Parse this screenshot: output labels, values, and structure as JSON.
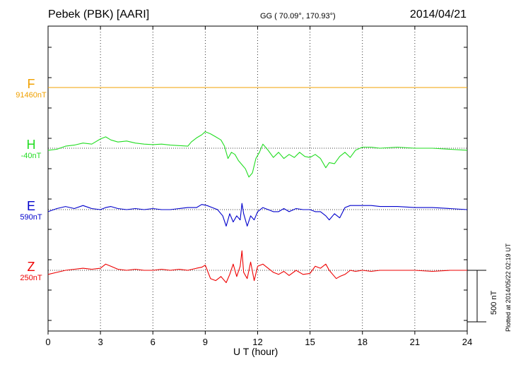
{
  "header": {
    "station": "Pebek (PBK)  [AARI]",
    "coords": "GG ( 70.09°, 170.93°)",
    "date": "2014/04/21"
  },
  "footer": {
    "plotted": "Plotted at 2014/05/22 02:19 UT",
    "scale": "500 nT"
  },
  "chart_data": {
    "type": "line",
    "xlabel": "U T (hour)",
    "xlim": [
      0,
      24
    ],
    "xticks": [
      "0",
      "3",
      "6",
      "9",
      "12",
      "15",
      "18",
      "21",
      "24"
    ],
    "grid": true,
    "scale_bar_nT": 500,
    "series": [
      {
        "name": "F",
        "baseline": "91460nT",
        "color": "#f0a000",
        "x": [
          0,
          24
        ],
        "y": [
          0,
          0
        ]
      },
      {
        "name": "H",
        "baseline": "-40nT",
        "color": "#22dd22",
        "x": [
          0,
          0.5,
          1,
          1.5,
          2,
          2.5,
          3,
          3.3,
          3.6,
          4,
          4.5,
          5,
          5.5,
          6,
          6.5,
          7,
          7.5,
          8,
          8.2,
          8.5,
          8.8,
          9,
          9.3,
          9.6,
          9.9,
          10.1,
          10.3,
          10.5,
          10.7,
          10.9,
          11.1,
          11.3,
          11.5,
          11.7,
          11.9,
          12.1,
          12.3,
          12.6,
          12.9,
          13.2,
          13.5,
          13.8,
          14.1,
          14.4,
          14.7,
          15,
          15.3,
          15.6,
          15.9,
          16.1,
          16.4,
          16.7,
          17,
          17.3,
          17.6,
          18,
          18.5,
          19,
          20,
          21,
          22,
          23,
          24
        ],
        "y": [
          -20,
          -10,
          20,
          30,
          50,
          40,
          90,
          110,
          80,
          60,
          70,
          50,
          40,
          35,
          40,
          30,
          25,
          20,
          60,
          100,
          130,
          160,
          140,
          110,
          80,
          20,
          -100,
          -40,
          -60,
          -120,
          -160,
          -200,
          -280,
          -240,
          -100,
          -40,
          40,
          -20,
          -90,
          -40,
          -100,
          -60,
          -90,
          -40,
          -80,
          -90,
          -60,
          -100,
          -190,
          -140,
          -150,
          -80,
          -40,
          -90,
          -20,
          10,
          10,
          0,
          10,
          0,
          0,
          -10,
          -20
        ]
      },
      {
        "name": "E",
        "baseline": "590nT",
        "color": "#0000cc",
        "x": [
          0,
          0.5,
          1,
          1.5,
          2,
          2.5,
          3,
          3.3,
          3.6,
          4,
          4.5,
          5,
          5.5,
          6,
          6.5,
          7,
          7.5,
          8,
          8.5,
          8.8,
          9.1,
          9.4,
          9.7,
          10,
          10.2,
          10.4,
          10.6,
          10.8,
          11,
          11.1,
          11.2,
          11.4,
          11.6,
          11.8,
          12,
          12.3,
          12.6,
          12.9,
          13.2,
          13.5,
          13.8,
          14.2,
          14.6,
          15,
          15.3,
          15.6,
          15.9,
          16.1,
          16.4,
          16.7,
          17,
          17.3,
          17.6,
          18,
          18.5,
          19,
          20,
          21,
          22,
          23,
          24
        ],
        "y": [
          -20,
          10,
          30,
          10,
          40,
          10,
          0,
          20,
          30,
          10,
          0,
          10,
          0,
          10,
          0,
          0,
          10,
          20,
          20,
          50,
          40,
          20,
          0,
          -60,
          -160,
          -40,
          -120,
          -60,
          -100,
          60,
          -40,
          -160,
          -60,
          -100,
          -20,
          20,
          0,
          -20,
          -20,
          10,
          -20,
          10,
          0,
          0,
          -20,
          -20,
          -60,
          -100,
          -40,
          -80,
          20,
          40,
          40,
          40,
          40,
          30,
          30,
          20,
          20,
          10,
          0
        ]
      },
      {
        "name": "Z",
        "baseline": "250nT",
        "color": "#ee0000",
        "x": [
          0,
          0.5,
          1,
          1.5,
          2,
          2.5,
          3,
          3.3,
          3.6,
          4,
          4.5,
          5,
          5.5,
          6,
          6.5,
          7,
          7.5,
          8,
          8.5,
          8.8,
          9,
          9.3,
          9.6,
          9.9,
          10.2,
          10.4,
          10.6,
          10.8,
          11,
          11.1,
          11.2,
          11.4,
          11.6,
          11.8,
          12,
          12.3,
          12.6,
          12.9,
          13.2,
          13.5,
          13.8,
          14.2,
          14.6,
          15,
          15.3,
          15.6,
          15.9,
          16.1,
          16.3,
          16.5,
          16.7,
          17,
          17.3,
          17.6,
          18,
          18.5,
          19,
          20,
          21,
          22,
          23,
          24
        ],
        "y": [
          -40,
          -20,
          0,
          10,
          20,
          10,
          20,
          60,
          40,
          10,
          0,
          10,
          0,
          0,
          10,
          0,
          10,
          0,
          20,
          30,
          50,
          -80,
          -100,
          -60,
          -120,
          -40,
          60,
          -60,
          40,
          190,
          -20,
          -80,
          80,
          -100,
          40,
          60,
          20,
          -20,
          -40,
          -10,
          -50,
          0,
          -40,
          -30,
          40,
          20,
          60,
          0,
          -40,
          -80,
          -60,
          -40,
          0,
          -10,
          0,
          -10,
          0,
          0,
          0,
          -10,
          0,
          0
        ]
      }
    ]
  }
}
